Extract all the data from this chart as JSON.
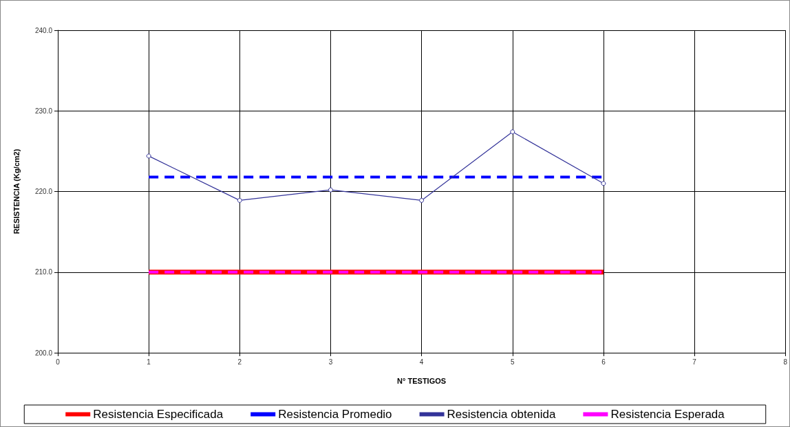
{
  "chart_data": {
    "type": "line",
    "xlabel": "N° TESTIGOS",
    "ylabel": "RESISTENCIA (Kg/cm2)",
    "xlim": [
      0,
      8
    ],
    "xticks": [
      0,
      1,
      2,
      3,
      4,
      5,
      6,
      7,
      8
    ],
    "ylim": [
      200,
      240
    ],
    "yticks": [
      {
        "value": 200,
        "label": "200.0"
      },
      {
        "value": 210,
        "label": "210.0"
      },
      {
        "value": 220,
        "label": "220.0"
      },
      {
        "value": 230,
        "label": "230.0"
      },
      {
        "value": 240,
        "label": "240.0"
      }
    ],
    "grid": true,
    "legend": "bottom",
    "x": [
      1,
      2,
      3,
      4,
      5,
      6
    ],
    "series": [
      {
        "name": "Resistencia Especificada",
        "color": "#ff0000",
        "values": [
          210,
          210,
          210,
          210,
          210,
          210
        ],
        "line_style": "solid",
        "marker": "none"
      },
      {
        "name": "Resistencia Promedio",
        "color": "#0000ff",
        "values": [
          221.8,
          221.8,
          221.8,
          221.8,
          221.8,
          221.8
        ],
        "line_style": "dashed",
        "marker": "none"
      },
      {
        "name": "Resistencia obtenida",
        "color": "#333399",
        "values": [
          224.4,
          218.9,
          220.2,
          218.9,
          227.4,
          221.0
        ],
        "line_style": "solid",
        "marker": "circle"
      },
      {
        "name": "Resistencia Esperada",
        "color": "#ff00ff",
        "values": [
          210,
          210,
          210,
          210,
          210,
          210
        ],
        "line_style": "dashed",
        "marker": "none"
      }
    ]
  }
}
